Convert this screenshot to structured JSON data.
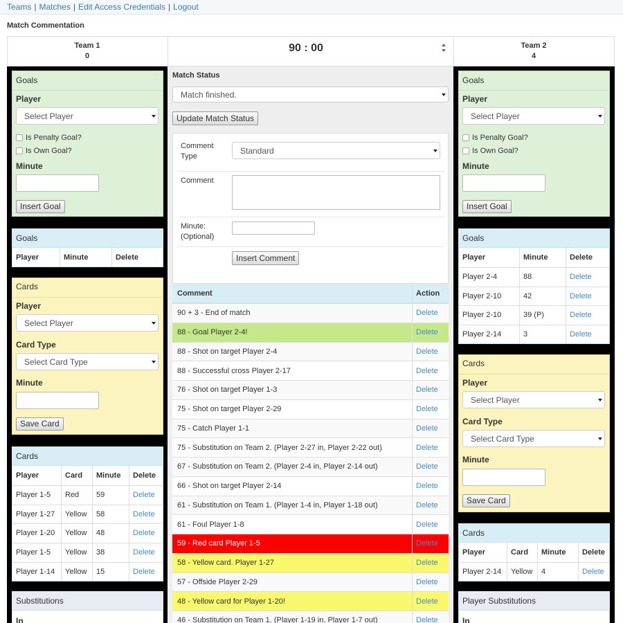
{
  "nav": {
    "links": [
      "Teams",
      "Matches",
      "Edit Access Credentials",
      "Logout"
    ],
    "separator": "|"
  },
  "page_title": "Match Commentation",
  "scoreboard": {
    "team1": {
      "name": "Team 1",
      "score": 0
    },
    "clock": "90 : 00",
    "team2": {
      "name": "Team 2",
      "score": 4
    }
  },
  "team1": {
    "goal_form": {
      "title": "Goals",
      "player_label": "Player",
      "player_placeholder": "Select Player",
      "penalty_label": "Is Penalty Goal?",
      "own_goal_label": "Is Own Goal?",
      "minute_label": "Minute",
      "button": "Insert Goal"
    },
    "goals_table": {
      "title": "Goals",
      "columns": [
        "Player",
        "Minute",
        "Delete"
      ],
      "rows": []
    },
    "card_form": {
      "title": "Cards",
      "player_label": "Player",
      "player_placeholder": "Select Player",
      "card_type_label": "Card Type",
      "card_type_placeholder": "Select Card Type",
      "minute_label": "Minute",
      "button": "Save Card"
    },
    "cards_table": {
      "title": "Cards",
      "columns": [
        "Player",
        "Card",
        "Minute",
        "Delete"
      ],
      "rows": [
        [
          "Player 1-5",
          "Red",
          59
        ],
        [
          "Player 1-27",
          "Yellow",
          58
        ],
        [
          "Player 1-20",
          "Yellow",
          48
        ],
        [
          "Player 1-5",
          "Yellow",
          38
        ],
        [
          "Player 1-14",
          "Yellow",
          15
        ]
      ],
      "action": "Delete"
    },
    "substitutions": {
      "title": "Substitutions",
      "columns": [
        "In"
      ]
    }
  },
  "team2": {
    "goal_form": {
      "title": "Goals",
      "player_label": "Player",
      "player_placeholder": "Select Player",
      "penalty_label": "Is Penalty Goal?",
      "own_goal_label": "Is Own Goal?",
      "minute_label": "Minute",
      "button": "Insert Goal"
    },
    "goals_table": {
      "title": "Goals",
      "columns": [
        "Player",
        "Minute",
        "Delete"
      ],
      "rows": [
        [
          "Player 2-4",
          "88"
        ],
        [
          "Player 2-10",
          "42"
        ],
        [
          "Player 2-10",
          "39 (P)"
        ],
        [
          "Player 2-14",
          "3"
        ]
      ],
      "action": "Delete"
    },
    "card_form": {
      "title": "Cards",
      "player_label": "Player",
      "player_placeholder": "Select Player",
      "card_type_label": "Card Type",
      "card_type_placeholder": "Select Card Type",
      "minute_label": "Minute",
      "button": "Save Card"
    },
    "cards_table": {
      "title": "Cards",
      "columns": [
        "Player",
        "Card",
        "Minute",
        "Delete"
      ],
      "rows": [
        [
          "Player 2-14",
          "Yellow",
          4
        ]
      ],
      "action": "Delete"
    },
    "substitutions": {
      "title": "Player Substitutions",
      "columns": [
        "In"
      ]
    }
  },
  "match_status": {
    "label": "Match Status",
    "value": "Match finished.",
    "button": "Update Match Status"
  },
  "comment_form": {
    "type_label": "Comment Type",
    "type_value": "Standard",
    "comment_label": "Comment",
    "minute_label": "Minute: (Optional)",
    "button": "Insert Comment"
  },
  "comments": {
    "columns": [
      "Comment",
      "Action"
    ],
    "action": "Delete",
    "rows": [
      {
        "text": "90 + 3 - End of match"
      },
      {
        "text": "88 - Goal Player 2-4!",
        "color": "#c5e98a"
      },
      {
        "text": "88 - Shot on target Player 2-4"
      },
      {
        "text": "88 - Successful cross Player 2-17"
      },
      {
        "text": "76 - Shot on target Player 1-3"
      },
      {
        "text": "75 - Shot on target Player 2-29"
      },
      {
        "text": "75 - Catch Player 1-1"
      },
      {
        "text": "75 - Substitution on Team 2. (Player 2-27 in, Player 2-22 out)"
      },
      {
        "text": "67 - Substitution on Team 2. (Player 2-4 in, Player 2-14 out)"
      },
      {
        "text": "66 - Shot on target Player 2-14"
      },
      {
        "text": "61 - Substitution on Team 1. (Player 1-4 in, Player 1-18 out)"
      },
      {
        "text": "61 - Foul Player 1-8"
      },
      {
        "text": "59 - Red card Player 1-5",
        "color": "#ff0000",
        "text_color": "#ffffff"
      },
      {
        "text": "58 - Yellow card. Player 1-27",
        "color": "#f9f76b"
      },
      {
        "text": "57 - Offside Player 2-29"
      },
      {
        "text": "48 - Yellow card for Player 1-20!",
        "color": "#f9f76b"
      },
      {
        "text": "46 - Substitution on Team 1. (Player 1-19 in, Player 1-7 out)"
      }
    ]
  }
}
